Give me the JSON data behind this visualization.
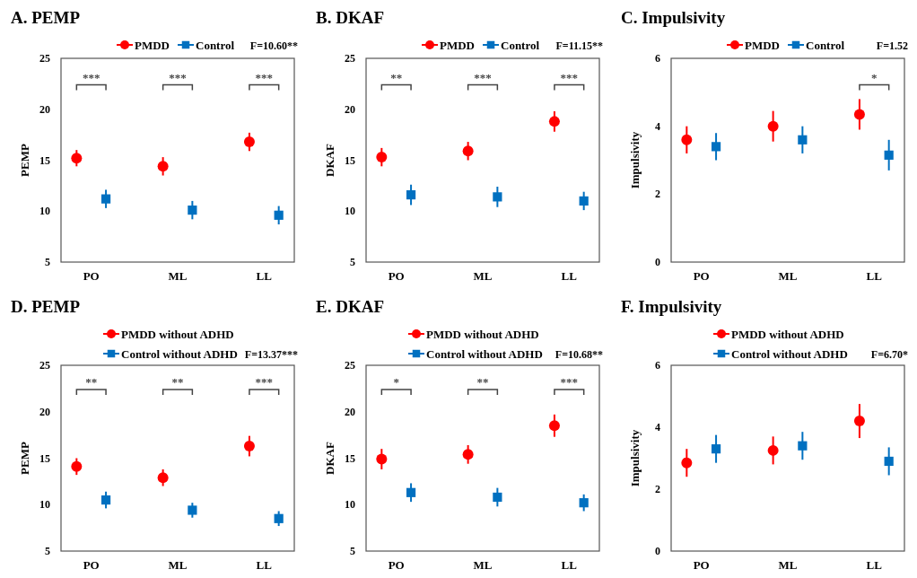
{
  "chart_data": [
    {
      "type": "scatter",
      "title": "A. PEMP",
      "ylabel": "PEMP",
      "categories": [
        "PO",
        "ML",
        "LL"
      ],
      "ylim": [
        5,
        25
      ],
      "yticks": [
        5,
        10,
        15,
        20,
        25
      ],
      "legend": "top",
      "series": [
        {
          "name": "PMDD",
          "color": "#ff0000",
          "marker": "circle",
          "values": [
            15.2,
            14.4,
            16.8
          ],
          "errors": [
            0.8,
            0.9,
            0.9
          ]
        },
        {
          "name": "Control",
          "color": "#0070c0",
          "marker": "square",
          "values": [
            11.2,
            10.1,
            9.6
          ],
          "errors": [
            0.9,
            0.9,
            0.9
          ]
        }
      ],
      "annotations": [
        "F=10.60**",
        "***",
        "***",
        "***"
      ]
    },
    {
      "type": "scatter",
      "title": "B. DKAF",
      "ylabel": "DKAF",
      "categories": [
        "PO",
        "ML",
        "LL"
      ],
      "ylim": [
        5,
        25
      ],
      "yticks": [
        5,
        10,
        15,
        20,
        25
      ],
      "legend": "top",
      "series": [
        {
          "name": "PMDD",
          "color": "#ff0000",
          "marker": "circle",
          "values": [
            15.3,
            15.9,
            18.8
          ],
          "errors": [
            0.9,
            0.9,
            1.0
          ]
        },
        {
          "name": "Control",
          "color": "#0070c0",
          "marker": "square",
          "values": [
            11.6,
            11.4,
            11.0
          ],
          "errors": [
            1.0,
            1.0,
            0.9
          ]
        }
      ],
      "annotations": [
        "F=11.15**",
        "**",
        "***",
        "***"
      ]
    },
    {
      "type": "scatter",
      "title": "C. Impulsivity",
      "ylabel": "Impulsivity",
      "categories": [
        "PO",
        "ML",
        "LL"
      ],
      "ylim": [
        0,
        6
      ],
      "yticks": [
        0,
        2,
        4,
        6
      ],
      "legend": "top",
      "series": [
        {
          "name": "PMDD",
          "color": "#ff0000",
          "marker": "circle",
          "values": [
            3.6,
            4.0,
            4.35
          ],
          "errors": [
            0.4,
            0.45,
            0.45
          ]
        },
        {
          "name": "Control",
          "color": "#0070c0",
          "marker": "square",
          "values": [
            3.4,
            3.6,
            3.15
          ],
          "errors": [
            0.4,
            0.4,
            0.45
          ]
        }
      ],
      "annotations": [
        "F=1.52",
        "*"
      ]
    },
    {
      "type": "scatter",
      "title": "D. PEMP",
      "ylabel": "PEMP",
      "categories": [
        "PO",
        "ML",
        "LL"
      ],
      "ylim": [
        5,
        25
      ],
      "yticks": [
        5,
        10,
        15,
        20,
        25
      ],
      "legend": "top",
      "series": [
        {
          "name": "PMDD  without ADHD",
          "color": "#ff0000",
          "marker": "circle",
          "values": [
            14.1,
            12.9,
            16.3
          ],
          "errors": [
            0.9,
            0.9,
            1.1
          ]
        },
        {
          "name": "Control  without ADHD",
          "color": "#0070c0",
          "marker": "square",
          "values": [
            10.5,
            9.4,
            8.5
          ],
          "errors": [
            0.9,
            0.8,
            0.8
          ]
        }
      ],
      "annotations": [
        "F=13.37***",
        "**",
        "**",
        "***"
      ]
    },
    {
      "type": "scatter",
      "title": "E. DKAF",
      "ylabel": "DKAF",
      "categories": [
        "PO",
        "ML",
        "LL"
      ],
      "ylim": [
        5,
        25
      ],
      "yticks": [
        5,
        10,
        15,
        20,
        25
      ],
      "legend": "top",
      "series": [
        {
          "name": "PMDD  without ADHD",
          "color": "#ff0000",
          "marker": "circle",
          "values": [
            14.9,
            15.4,
            18.5
          ],
          "errors": [
            1.1,
            1.0,
            1.2
          ]
        },
        {
          "name": "Control  without ADHD",
          "color": "#0070c0",
          "marker": "square",
          "values": [
            11.3,
            10.8,
            10.2
          ],
          "errors": [
            1.0,
            1.0,
            0.9
          ]
        }
      ],
      "annotations": [
        "F=10.68**",
        "*",
        "**",
        "***"
      ]
    },
    {
      "type": "scatter",
      "title": "F. Impulsivity",
      "ylabel": "Impulsivity",
      "categories": [
        "PO",
        "ML",
        "LL"
      ],
      "ylim": [
        0,
        6
      ],
      "yticks": [
        0,
        2,
        4,
        6
      ],
      "legend": "top",
      "series": [
        {
          "name": "PMDD  without ADHD",
          "color": "#ff0000",
          "marker": "circle",
          "values": [
            2.85,
            3.25,
            4.2
          ],
          "errors": [
            0.45,
            0.45,
            0.55
          ]
        },
        {
          "name": "Control  without ADHD",
          "color": "#0070c0",
          "marker": "square",
          "values": [
            3.3,
            3.4,
            2.9
          ],
          "errors": [
            0.45,
            0.45,
            0.45
          ]
        }
      ],
      "annotations": [
        "F=6.70*"
      ]
    }
  ]
}
